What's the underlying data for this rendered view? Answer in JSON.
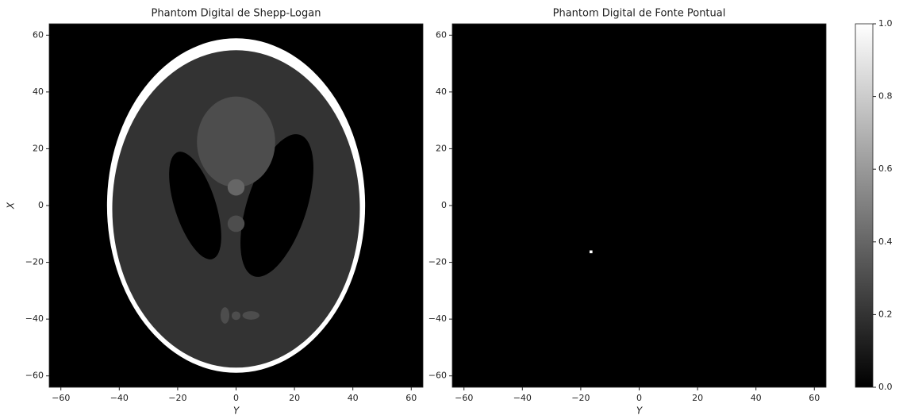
{
  "chart_data": [
    {
      "type": "image",
      "title": "Phantom Digital de Shepp-Logan",
      "xlabel": "Y",
      "ylabel": "X",
      "xlim": [
        -64,
        64
      ],
      "ylim": [
        -64,
        64
      ],
      "xticks": [
        {
          "value": -60,
          "label": "−60"
        },
        {
          "value": -40,
          "label": "−40"
        },
        {
          "value": -20,
          "label": "−20"
        },
        0,
        20,
        40,
        60
      ],
      "yticks": [
        {
          "value": -60,
          "label": "−60"
        },
        {
          "value": -40,
          "label": "−40"
        },
        {
          "value": -20,
          "label": "−20"
        },
        0,
        20,
        40,
        60
      ],
      "ellipses": [
        {
          "cx": 0,
          "cy": 0,
          "rx": 44.2,
          "ry": 58.9,
          "angle": 0,
          "value": 1
        },
        {
          "cx": 0,
          "cy": -1.2,
          "rx": 42.4,
          "ry": 55.9,
          "angle": 0,
          "value": 0.2
        },
        {
          "cx": -14,
          "cy": 0,
          "rx": 7,
          "ry": 19.8,
          "angle": -18,
          "value": 0
        },
        {
          "cx": 14,
          "cy": 0,
          "rx": 10.2,
          "ry": 26.2,
          "angle": 18,
          "value": 0
        },
        {
          "cx": 0,
          "cy": 22.4,
          "rx": 13.4,
          "ry": 16,
          "angle": 0,
          "value": 0.3
        },
        {
          "cx": 0,
          "cy": 6.4,
          "rx": 2.9,
          "ry": 2.9,
          "angle": 0,
          "value": 0.4
        },
        {
          "cx": 0,
          "cy": -6.4,
          "rx": 2.9,
          "ry": 2.9,
          "angle": 0,
          "value": 0.3
        },
        {
          "cx": -3.8,
          "cy": -38.7,
          "rx": 1.5,
          "ry": 2.9,
          "angle": 0,
          "value": 0.3
        },
        {
          "cx": 0,
          "cy": -38.8,
          "rx": 1.5,
          "ry": 1.5,
          "angle": 0,
          "value": 0.3
        },
        {
          "cx": 5.1,
          "cy": -38.7,
          "rx": 2.9,
          "ry": 1.5,
          "angle": 0,
          "value": 0.3
        }
      ]
    },
    {
      "type": "image",
      "title": "Phantom Digital de Fonte Pontual",
      "xlabel": "Y",
      "xlim": [
        -64,
        64
      ],
      "ylim": [
        -64,
        64
      ],
      "xticks": [
        {
          "value": -60,
          "label": "−60"
        },
        {
          "value": -40,
          "label": "−40"
        },
        {
          "value": -20,
          "label": "−20"
        },
        0,
        20,
        40,
        60
      ],
      "yticks": [
        {
          "value": -60,
          "label": "−60"
        },
        {
          "value": -40,
          "label": "−40"
        },
        {
          "value": -20,
          "label": "−20"
        },
        0,
        20,
        40,
        60
      ],
      "points": [
        {
          "x": -16.5,
          "y": -16.3,
          "value": 1
        }
      ]
    },
    {
      "type": "colorbar",
      "colors": [
        "#000000",
        "#ffffff"
      ],
      "ylim": [
        0,
        1
      ],
      "yticks": [
        {
          "value": 0,
          "label": "0.0"
        },
        {
          "value": 0.2,
          "label": "0.2"
        },
        {
          "value": 0.4,
          "label": "0.4"
        },
        {
          "value": 0.6,
          "label": "0.6"
        },
        {
          "value": 0.8,
          "label": "0.8"
        },
        {
          "value": 1,
          "label": "1.0"
        }
      ]
    }
  ]
}
